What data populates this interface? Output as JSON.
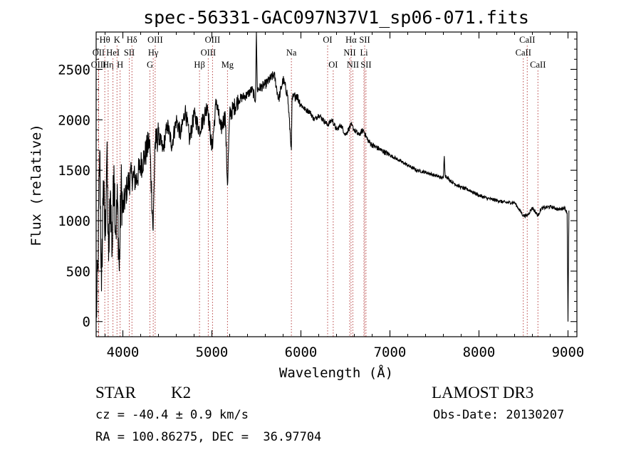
{
  "chart_data": {
    "type": "line",
    "title": "spec-56331-GAC097N37V1_sp06-071.fits",
    "xlabel": "Wavelength (Å)",
    "ylabel": "Flux (relative)",
    "xlim": [
      3700,
      9100
    ],
    "ylim": [
      -150,
      2870
    ],
    "x_ticks": [
      4000,
      5000,
      6000,
      7000,
      8000,
      9000
    ],
    "y_ticks": [
      0,
      500,
      1000,
      1500,
      2000,
      2500
    ],
    "x_tick_labels": [
      "4000",
      "5000",
      "6000",
      "7000",
      "8000",
      "9000"
    ],
    "y_tick_labels": [
      "0",
      "500",
      "1000",
      "1500",
      "2000",
      "2500"
    ],
    "line_color": "#000000",
    "marker_color": "#b03030",
    "spectrum": {
      "x": [
        3700,
        3720,
        3740,
        3760,
        3780,
        3800,
        3820,
        3840,
        3860,
        3880,
        3900,
        3920,
        3940,
        3960,
        3980,
        4000,
        4050,
        4100,
        4150,
        4200,
        4250,
        4300,
        4340,
        4360,
        4400,
        4450,
        4500,
        4550,
        4600,
        4650,
        4700,
        4750,
        4800,
        4861,
        4900,
        4950,
        5000,
        5050,
        5100,
        5150,
        5175,
        5200,
        5300,
        5400,
        5450,
        5490,
        5500,
        5510,
        5600,
        5700,
        5750,
        5800,
        5850,
        5893,
        5900,
        5950,
        6000,
        6050,
        6100,
        6150,
        6200,
        6250,
        6300,
        6350,
        6400,
        6450,
        6500,
        6563,
        6600,
        6650,
        6700,
        6750,
        6800,
        6900,
        7000,
        7100,
        7200,
        7300,
        7400,
        7500,
        7600,
        7610,
        7620,
        7700,
        7800,
        7900,
        8000,
        8100,
        8200,
        8300,
        8400,
        8498,
        8542,
        8600,
        8662,
        8700,
        8800,
        8900,
        8960,
        8990,
        9000,
        9010
      ],
      "y": [
        0,
        550,
        1700,
        300,
        1400,
        800,
        1650,
        600,
        1300,
        700,
        1550,
        900,
        1200,
        500,
        1350,
        1100,
        1350,
        1450,
        1400,
        1550,
        1650,
        1800,
        900,
        1750,
        1850,
        1700,
        1950,
        1750,
        2000,
        1850,
        2100,
        1800,
        2050,
        1900,
        2000,
        2150,
        1700,
        2200,
        1900,
        2050,
        1350,
        2050,
        2200,
        2250,
        2300,
        2200,
        2870,
        2300,
        2350,
        2450,
        2200,
        2400,
        2250,
        1700,
        2200,
        2250,
        2150,
        2100,
        2080,
        2000,
        2050,
        2000,
        1950,
        2000,
        1900,
        1950,
        1850,
        1950,
        1900,
        1850,
        1900,
        1800,
        1750,
        1700,
        1650,
        1600,
        1550,
        1500,
        1480,
        1450,
        1420,
        1640,
        1450,
        1380,
        1330,
        1300,
        1250,
        1220,
        1200,
        1180,
        1180,
        1050,
        1050,
        1130,
        1050,
        1120,
        1140,
        1110,
        1130,
        1080,
        0,
        1100
      ]
    },
    "line_markers": [
      {
        "label": "Hθ",
        "x": 3797,
        "row": 0
      },
      {
        "label": "OII",
        "x": 3727,
        "row": 1
      },
      {
        "label": "OIII",
        "x": 3727,
        "row": 2
      },
      {
        "label": "Hη",
        "x": 3835,
        "row": 2
      },
      {
        "label": "HeI",
        "x": 3889,
        "row": 1
      },
      {
        "label": "K",
        "x": 3934,
        "row": 0
      },
      {
        "label": "H",
        "x": 3969,
        "row": 2
      },
      {
        "label": "SII",
        "x": 4072,
        "row": 1
      },
      {
        "label": "Hδ",
        "x": 4102,
        "row": 0
      },
      {
        "label": "OIII",
        "x": 4363,
        "row": 0
      },
      {
        "label": "Hγ",
        "x": 4341,
        "row": 1
      },
      {
        "label": "G",
        "x": 4304,
        "row": 2
      },
      {
        "label": "Hβ",
        "x": 4861,
        "row": 2
      },
      {
        "label": "OIII",
        "x": 5007,
        "row": 0
      },
      {
        "label": "OIII",
        "x": 4959,
        "row": 1
      },
      {
        "label": "Mg",
        "x": 5175,
        "row": 2
      },
      {
        "label": "Na",
        "x": 5893,
        "row": 1
      },
      {
        "label": "OI",
        "x": 6300,
        "row": 0
      },
      {
        "label": "OI",
        "x": 6363,
        "row": 2
      },
      {
        "label": "Hα",
        "x": 6563,
        "row": 0
      },
      {
        "label": "SII",
        "x": 6716,
        "row": 0
      },
      {
        "label": "NII",
        "x": 6548,
        "row": 1
      },
      {
        "label": "Li",
        "x": 6708,
        "row": 1
      },
      {
        "label": "NII",
        "x": 6583,
        "row": 2
      },
      {
        "label": "SII",
        "x": 6731,
        "row": 2
      },
      {
        "label": "CaII",
        "x": 8542,
        "row": 0
      },
      {
        "label": "CaII",
        "x": 8498,
        "row": 1
      },
      {
        "label": "CaII",
        "x": 8662,
        "row": 2
      }
    ]
  },
  "info": {
    "object_class": "STAR",
    "subclass": "K2",
    "survey": "LAMOST DR3",
    "cz": "cz = -40.4 ± 0.9 km/s",
    "obs_date": "Obs-Date: 20130207",
    "coords": "RA = 100.86275, DEC =  36.97704"
  }
}
